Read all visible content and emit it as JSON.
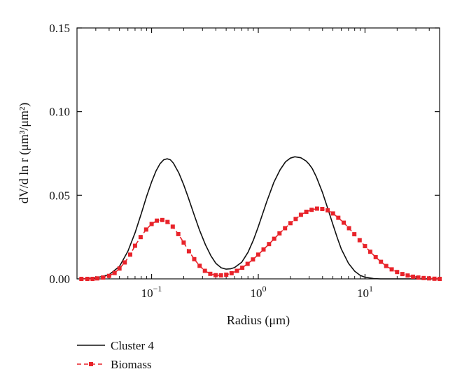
{
  "chart_data": {
    "type": "line",
    "xscale": "log",
    "xlim": [
      0.02,
      50
    ],
    "ylim": [
      0,
      0.15
    ],
    "xlabel": "Radius (μm)",
    "ylabel": "dV/d ln r (μm³/μm²)",
    "x_ticks": [
      {
        "value": 0.1,
        "base": "10",
        "exp": "−1"
      },
      {
        "value": 1,
        "base": "10",
        "exp": "0"
      },
      {
        "value": 10,
        "base": "10",
        "exp": "1"
      }
    ],
    "y_ticks": [
      {
        "value": 0,
        "label": "0.00"
      },
      {
        "value": 0.05,
        "label": "0.05"
      },
      {
        "value": 0.1,
        "label": "0.10"
      },
      {
        "value": 0.15,
        "label": "0.15"
      }
    ],
    "grid": false,
    "legend_position": "below-left",
    "series": [
      {
        "name": "Cluster 4",
        "style": "solid",
        "color": "#111111",
        "x": [
          0.022,
          0.03,
          0.04,
          0.05,
          0.06,
          0.07,
          0.08,
          0.09,
          0.1,
          0.11,
          0.12,
          0.13,
          0.14,
          0.15,
          0.16,
          0.18,
          0.2,
          0.22,
          0.25,
          0.28,
          0.32,
          0.36,
          0.4,
          0.45,
          0.5,
          0.55,
          0.6,
          0.7,
          0.8,
          0.9,
          1.0,
          1.2,
          1.4,
          1.6,
          1.8,
          2.0,
          2.2,
          2.5,
          2.8,
          3.0,
          3.2,
          3.5,
          4.0,
          4.5,
          5.0,
          5.5,
          6.0,
          7.0,
          8.0,
          9.0,
          10.0,
          12.0,
          14.0,
          16.0,
          18.0,
          20.0,
          25.0,
          30.0,
          50.0
        ],
        "y": [
          0.0,
          0.0005,
          0.0025,
          0.0075,
          0.0165,
          0.0275,
          0.039,
          0.0495,
          0.058,
          0.0645,
          0.0688,
          0.0712,
          0.0718,
          0.0712,
          0.0692,
          0.0633,
          0.0563,
          0.0488,
          0.0385,
          0.0295,
          0.0203,
          0.0137,
          0.0093,
          0.0066,
          0.0058,
          0.006,
          0.0068,
          0.01,
          0.0158,
          0.0232,
          0.0312,
          0.0462,
          0.0578,
          0.0652,
          0.07,
          0.0722,
          0.073,
          0.0724,
          0.0705,
          0.0685,
          0.066,
          0.061,
          0.0515,
          0.0416,
          0.0325,
          0.0245,
          0.0178,
          0.0093,
          0.0046,
          0.0021,
          0.001,
          0.0002,
          0.0,
          0.0,
          0.0,
          0.0,
          0.0,
          0.0,
          0.0
        ]
      },
      {
        "name": "Biomass",
        "style": "dashed-square",
        "color": "#e8232a",
        "x": [
          0.022,
          0.025,
          0.028,
          0.031,
          0.035,
          0.04,
          0.045,
          0.05,
          0.056,
          0.063,
          0.07,
          0.079,
          0.089,
          0.1,
          0.112,
          0.126,
          0.141,
          0.158,
          0.178,
          0.2,
          0.224,
          0.251,
          0.282,
          0.316,
          0.355,
          0.398,
          0.447,
          0.501,
          0.562,
          0.631,
          0.708,
          0.794,
          0.891,
          1.0,
          1.12,
          1.26,
          1.41,
          1.58,
          1.78,
          2.0,
          2.24,
          2.51,
          2.82,
          3.16,
          3.55,
          3.98,
          4.47,
          5.01,
          5.62,
          6.31,
          7.08,
          7.94,
          8.91,
          10.0,
          11.2,
          12.6,
          14.1,
          15.8,
          17.8,
          20.0,
          22.4,
          25.1,
          28.2,
          31.6,
          35.5,
          39.8,
          44.7,
          50.1
        ],
        "y": [
          0.0,
          0.0,
          0.0,
          0.0003,
          0.0008,
          0.0018,
          0.0035,
          0.0062,
          0.0098,
          0.0145,
          0.0198,
          0.025,
          0.0295,
          0.0328,
          0.0348,
          0.0352,
          0.034,
          0.0312,
          0.0268,
          0.0217,
          0.0165,
          0.0118,
          0.0078,
          0.0048,
          0.003,
          0.0022,
          0.0021,
          0.0025,
          0.0034,
          0.0048,
          0.0067,
          0.009,
          0.0116,
          0.0145,
          0.0176,
          0.0208,
          0.024,
          0.0272,
          0.0303,
          0.0333,
          0.0358,
          0.0383,
          0.0401,
          0.0413,
          0.042,
          0.0418,
          0.041,
          0.0391,
          0.0365,
          0.0336,
          0.0303,
          0.0267,
          0.0231,
          0.0196,
          0.0162,
          0.013,
          0.0102,
          0.0077,
          0.0057,
          0.0041,
          0.0029,
          0.002,
          0.0013,
          0.0008,
          0.0005,
          0.0003,
          0.0001,
          0.0
        ]
      }
    ]
  }
}
